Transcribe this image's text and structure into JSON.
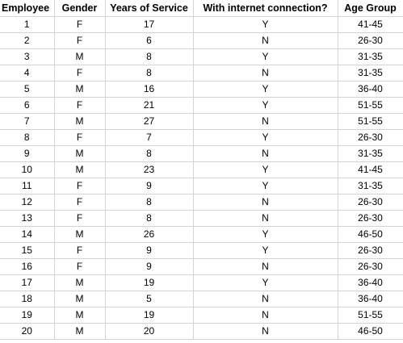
{
  "columns": [
    "Employee",
    "Gender",
    "Years of Service",
    "With internet connection?",
    "Age Group"
  ],
  "rows": [
    [
      "1",
      "F",
      "17",
      "Y",
      "41-45"
    ],
    [
      "2",
      "F",
      "6",
      "N",
      "26-30"
    ],
    [
      "3",
      "M",
      "8",
      "Y",
      "31-35"
    ],
    [
      "4",
      "F",
      "8",
      "N",
      "31-35"
    ],
    [
      "5",
      "M",
      "16",
      "Y",
      "36-40"
    ],
    [
      "6",
      "F",
      "21",
      "Y",
      "51-55"
    ],
    [
      "7",
      "M",
      "27",
      "N",
      "51-55"
    ],
    [
      "8",
      "F",
      "7",
      "Y",
      "26-30"
    ],
    [
      "9",
      "M",
      "8",
      "N",
      "31-35"
    ],
    [
      "10",
      "M",
      "23",
      "Y",
      "41-45"
    ],
    [
      "11",
      "F",
      "9",
      "Y",
      "31-35"
    ],
    [
      "12",
      "F",
      "8",
      "N",
      "26-30"
    ],
    [
      "13",
      "F",
      "8",
      "N",
      "26-30"
    ],
    [
      "14",
      "M",
      "26",
      "Y",
      "46-50"
    ],
    [
      "15",
      "F",
      "9",
      "Y",
      "26-30"
    ],
    [
      "16",
      "F",
      "9",
      "N",
      "26-30"
    ],
    [
      "17",
      "M",
      "19",
      "Y",
      "36-40"
    ],
    [
      "18",
      "M",
      "5",
      "N",
      "36-40"
    ],
    [
      "19",
      "M",
      "19",
      "N",
      "51-55"
    ],
    [
      "20",
      "M",
      "20",
      "N",
      "46-50"
    ]
  ],
  "colors": {
    "grid_line": "#d4d4d4",
    "background": "#ffffff",
    "text": "#000000"
  }
}
